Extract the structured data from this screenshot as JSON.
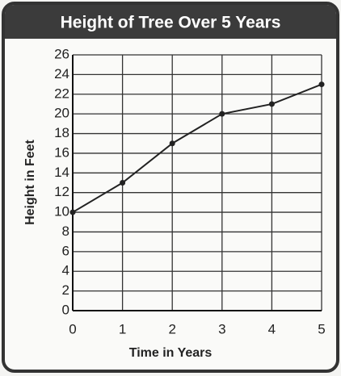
{
  "chart_data": {
    "type": "line",
    "title": "Height of Tree Over 5 Years",
    "x_label": "Time in Years",
    "y_label": "Height in Feet",
    "x": [
      0,
      1,
      2,
      3,
      4,
      5
    ],
    "series": [
      {
        "name": "Height",
        "color": "#222222",
        "values": [
          10,
          13,
          17,
          20,
          21,
          23
        ]
      }
    ],
    "xlim": [
      0,
      5
    ],
    "xticks": [
      0,
      1,
      2,
      3,
      4,
      5
    ],
    "ylim": [
      0,
      26
    ],
    "yticks": [
      0,
      2,
      4,
      6,
      8,
      10,
      12,
      14,
      16,
      18,
      20,
      22,
      24,
      26
    ],
    "grid": true
  }
}
